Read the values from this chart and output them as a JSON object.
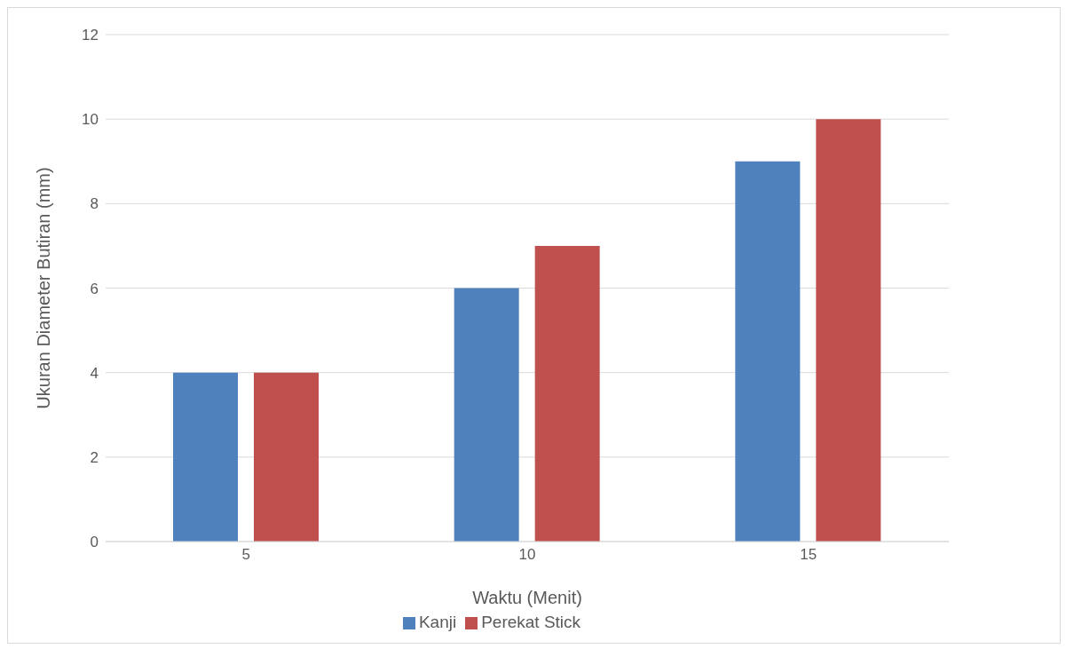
{
  "chart_data": {
    "type": "bar",
    "xlabel": "Waktu (Menit)",
    "ylabel": "Ukuran Diameter Butiran (mm)",
    "categories": [
      "5",
      "10",
      "15"
    ],
    "series": [
      {
        "name": "Kanji",
        "color": "#4f81bd",
        "values": [
          4,
          6,
          9
        ]
      },
      {
        "name": "Perekat Stick",
        "color": "#c0504d",
        "values": [
          4,
          7,
          10
        ]
      }
    ],
    "ylim": [
      0,
      12
    ],
    "yticks": [
      0,
      2,
      4,
      6,
      8,
      10,
      12
    ],
    "grid": "y",
    "legend": "bottom"
  }
}
